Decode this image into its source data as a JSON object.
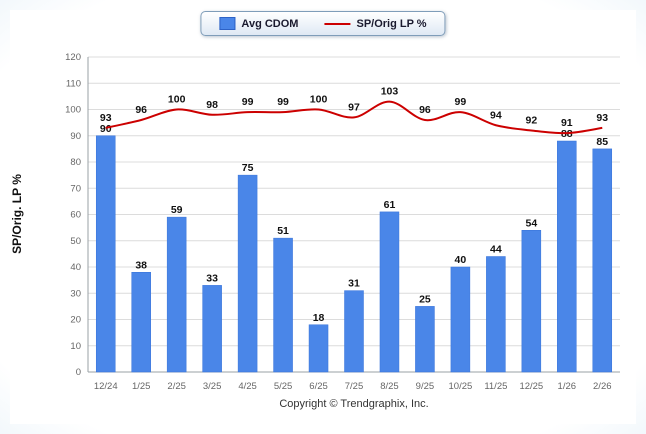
{
  "legend": {
    "items": [
      {
        "label": "Avg CDOM",
        "color": "#4a86e8",
        "type": "bar"
      },
      {
        "label": "SP/Orig LP %",
        "color": "#cc0000",
        "type": "line"
      }
    ]
  },
  "chart_data": {
    "type": "bar+line",
    "categories": [
      "12/24",
      "1/25",
      "2/25",
      "3/25",
      "4/25",
      "5/25",
      "6/25",
      "7/25",
      "8/25",
      "9/25",
      "10/25",
      "11/25",
      "12/25",
      "1/26",
      "2/26"
    ],
    "series": [
      {
        "name": "Avg CDOM",
        "type": "bar",
        "color": "#4a86e8",
        "values": [
          90,
          38,
          59,
          33,
          75,
          51,
          18,
          31,
          61,
          25,
          40,
          44,
          54,
          88,
          85
        ]
      },
      {
        "name": "SP/Orig LP %",
        "type": "line",
        "color": "#cc0000",
        "values": [
          93,
          96,
          100,
          98,
          99,
          99,
          100,
          97,
          103,
          96,
          99,
          94,
          92,
          91,
          93
        ]
      }
    ],
    "title": "",
    "xlabel": "",
    "ylabel": "SP/Orig. LP %",
    "ylim": [
      0,
      120
    ],
    "ytick_step": 10,
    "grid": true,
    "legend_position": "top-center"
  },
  "footer": {
    "copyright": "Copyright © Trendgraphix, Inc."
  }
}
